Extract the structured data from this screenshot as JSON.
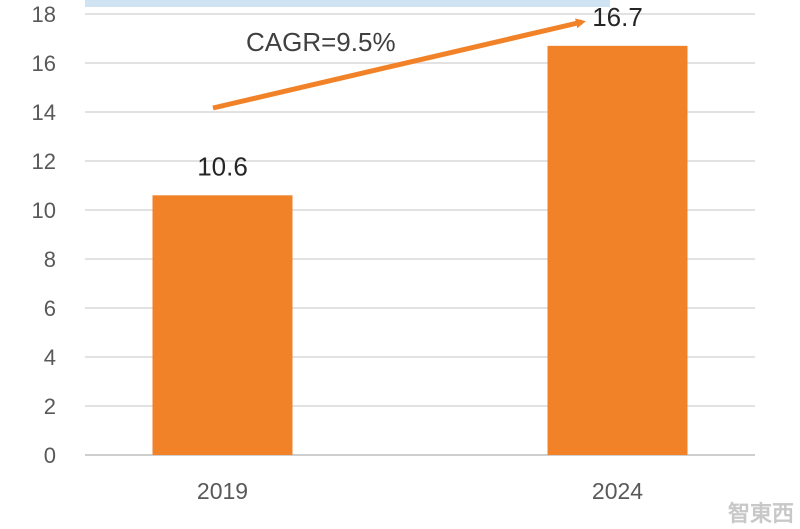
{
  "chart_data": {
    "type": "bar",
    "categories": [
      "2019",
      "2024"
    ],
    "values": [
      10.6,
      16.7
    ],
    "data_labels": [
      "10.6",
      "16.7"
    ],
    "ylim": [
      0,
      18
    ],
    "yticks": [
      "0",
      "2",
      "4",
      "6",
      "8",
      "10",
      "12",
      "14",
      "16",
      "18"
    ],
    "grid": true,
    "bar_color": "#F28228",
    "annotation": "CAGR=9.5%",
    "arrow_color": "#F28228"
  },
  "watermark": "智東西"
}
